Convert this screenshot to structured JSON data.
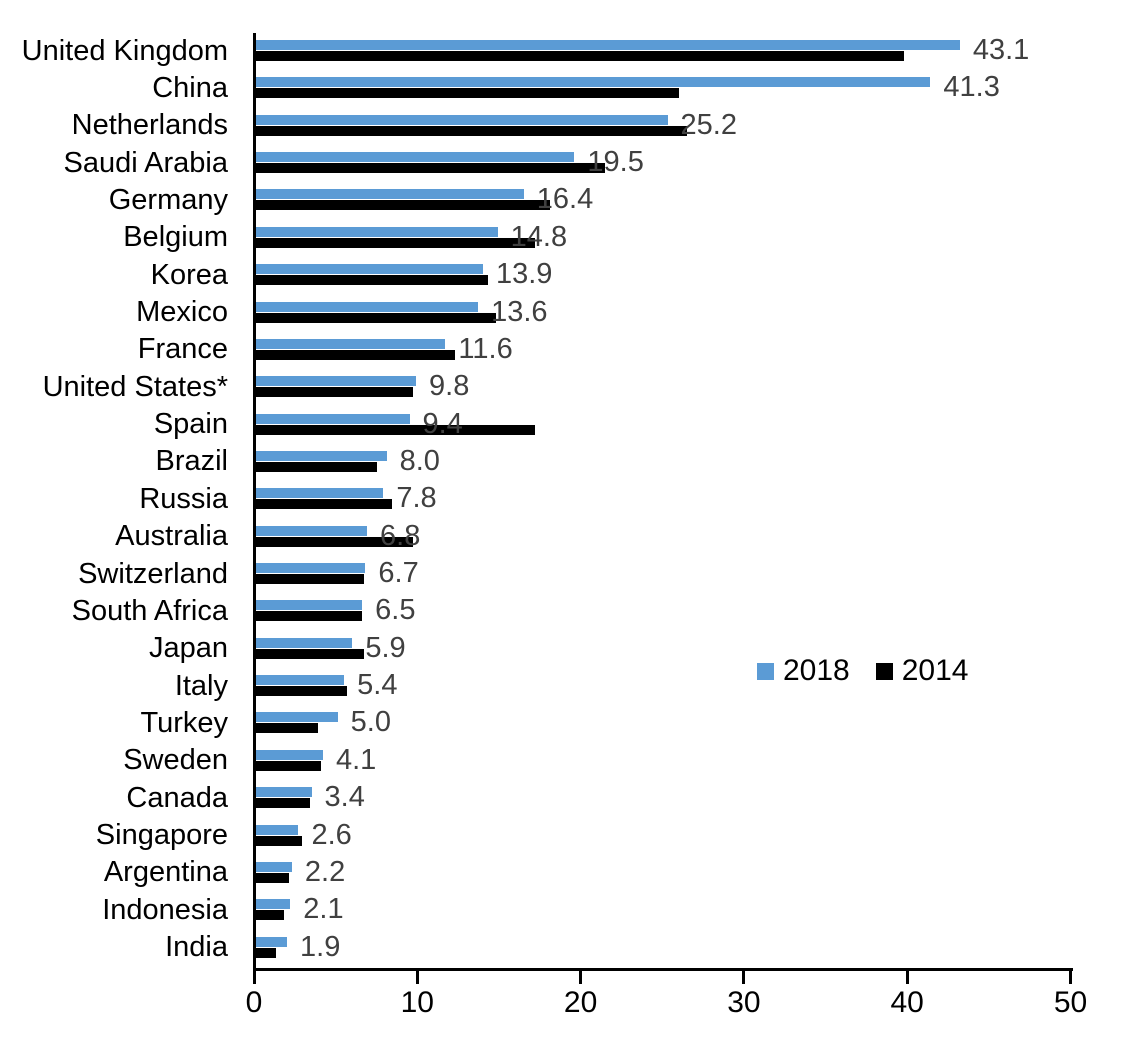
{
  "chart_data": {
    "type": "bar",
    "orientation": "horizontal",
    "title": "",
    "categories": [
      "United Kingdom",
      "China",
      "Netherlands",
      "Saudi Arabia",
      "Germany",
      "Belgium",
      "Korea",
      "Mexico",
      "France",
      "United States*",
      "Spain",
      "Brazil",
      "Russia",
      "Australia",
      "Switzerland",
      "South Africa",
      "Japan",
      "Italy",
      "Turkey",
      "Sweden",
      "Canada",
      "Singapore",
      "Argentina",
      "Indonesia",
      "India"
    ],
    "series": [
      {
        "name": "2018",
        "color": "#5B9BD5",
        "values": [
          43.1,
          41.3,
          25.2,
          19.5,
          16.4,
          14.8,
          13.9,
          13.6,
          11.6,
          9.8,
          9.4,
          8.0,
          7.8,
          6.8,
          6.7,
          6.5,
          5.9,
          5.4,
          5.0,
          4.1,
          3.4,
          2.6,
          2.2,
          2.1,
          1.9
        ],
        "data_labels": [
          "43.1",
          "41.3",
          "25.2",
          "19.5",
          "16.4",
          "14.8",
          "13.9",
          "13.6",
          "11.6",
          "9.8",
          "9.4",
          "8.0",
          "7.8",
          "6.8",
          "6.7",
          "6.5",
          "5.9",
          "5.4",
          "5.0",
          "4.1",
          "3.4",
          "2.6",
          "2.2",
          "2.1",
          "1.9"
        ]
      },
      {
        "name": "2014",
        "color": "#000000",
        "values": [
          39.7,
          25.9,
          26.4,
          21.4,
          18.0,
          17.1,
          14.2,
          14.7,
          12.2,
          9.6,
          17.1,
          7.4,
          8.3,
          9.6,
          6.6,
          6.5,
          6.6,
          5.6,
          3.8,
          4.0,
          3.3,
          2.8,
          2.0,
          1.7,
          1.2
        ]
      }
    ],
    "xlim": [
      0,
      50
    ],
    "x_ticks": [
      "0",
      "10",
      "20",
      "30",
      "40",
      "50"
    ],
    "grid": false,
    "legend": {
      "position": "center-right",
      "entries": [
        "2018",
        "2014"
      ]
    },
    "value_label_color": "#404040",
    "axis_color": "#000000"
  }
}
